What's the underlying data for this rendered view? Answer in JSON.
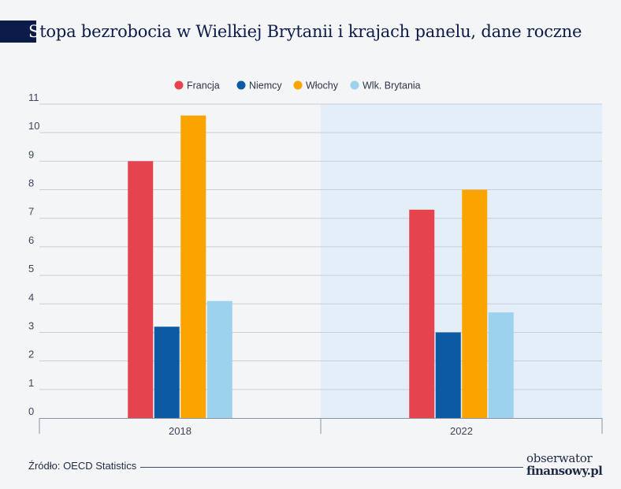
{
  "title": {
    "first_letter": "S",
    "rest": "topa bezrobocia w Wielkiej Brytanii i krajach panelu, dane roczne"
  },
  "chart_data": {
    "type": "bar",
    "title": "Stopa bezrobocia w Wielkiej Brytanii i krajach panelu, dane roczne",
    "categories": [
      "2018",
      "2022"
    ],
    "series": [
      {
        "name": "Francja",
        "values": [
          9.0,
          7.3
        ],
        "color": "#e5444f"
      },
      {
        "name": "Niemcy",
        "values": [
          3.2,
          3.0
        ],
        "color": "#0b5aa3"
      },
      {
        "name": "Włochy",
        "values": [
          10.6,
          8.0
        ],
        "color": "#fba400"
      },
      {
        "name": "Wlk. Brytania",
        "values": [
          4.1,
          3.7
        ],
        "color": "#9dd2ee"
      }
    ],
    "ylim": [
      0,
      11
    ],
    "yticks": [
      "0",
      "1",
      "2",
      "3",
      "4",
      "5",
      "6",
      "7",
      "8",
      "9",
      "10",
      "11"
    ],
    "grid": true,
    "legend_position": "top-center",
    "highlight_category": "2022",
    "highlight_color": "#e3eef8",
    "xlabel": "",
    "ylabel": ""
  },
  "footer": {
    "source": "Źródło: OECD Statistics",
    "logo_line1": "obserwator",
    "logo_line2": "finansowy.pl"
  }
}
